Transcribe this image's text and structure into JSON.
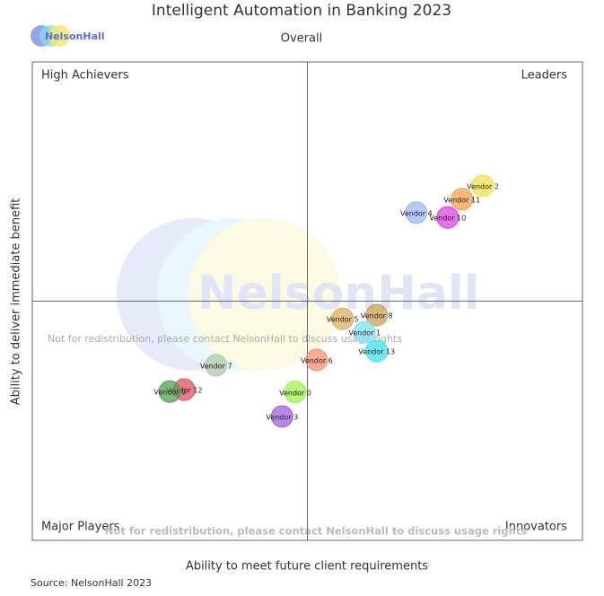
{
  "chart_data": {
    "type": "scatter",
    "title": "Intelligent Automation in Banking 2023",
    "subtitle": "Overall",
    "logo": "NelsonHall",
    "x_label": "Ability to meet future client requirements",
    "y_label": "Ability to deliver immediate benefit",
    "quadrants": [
      "High Achievers",
      "Leaders",
      "Major Players",
      "Innovators"
    ],
    "watermarks": [
      "Not for redistribution, please contact NelsonHall to discuss usage rights",
      "Not for redistribution, please contact NelsonHall to discuss usage rights"
    ],
    "source": "Source: NelsonHall 2023",
    "xlim": [
      0,
      10
    ],
    "ylim": [
      0,
      10
    ],
    "series": [
      {
        "name": "Vendor 2",
        "color": "#f5e04a",
        "x": [
          8.19
        ],
        "values": [
          7.41
        ]
      },
      {
        "name": "Vendor 11",
        "color": "#f5a04a",
        "x": [
          7.81
        ],
        "values": [
          7.13
        ]
      },
      {
        "name": "Vendor 4",
        "color": "#9cb8f0",
        "x": [
          6.98
        ],
        "values": [
          6.85
        ]
      },
      {
        "name": "Vendor 10",
        "color": "#e040e0",
        "x": [
          7.55
        ],
        "values": [
          6.75
        ]
      },
      {
        "name": "Vendor 8",
        "color": "#c8a050",
        "x": [
          6.26
        ],
        "values": [
          4.71
        ]
      },
      {
        "name": "Vendor 5",
        "color": "#d8b060",
        "x": [
          5.64
        ],
        "values": [
          4.63
        ]
      },
      {
        "name": "Vendor 1",
        "color": "#80e0f0",
        "x": [
          6.04
        ],
        "values": [
          4.35
        ]
      },
      {
        "name": "Vendor 13",
        "color": "#40e0f0",
        "x": [
          6.26
        ],
        "values": [
          3.96
        ]
      },
      {
        "name": "Vendor 6",
        "color": "#f09070",
        "x": [
          5.17
        ],
        "values": [
          3.77
        ]
      },
      {
        "name": "Vendor 7",
        "color": "#b0c8a8",
        "x": [
          3.34
        ],
        "values": [
          3.66
        ]
      },
      {
        "name": "Vendor 12",
        "color": "#e05060",
        "x": [
          2.76
        ],
        "values": [
          3.15
        ]
      },
      {
        "name": "Vendor 9",
        "color": "#50a050",
        "x": [
          2.5
        ],
        "values": [
          3.11
        ]
      },
      {
        "name": "Vendor 0",
        "color": "#a0f050",
        "x": [
          4.78
        ],
        "values": [
          3.1
        ]
      },
      {
        "name": "Vendor 3",
        "color": "#a060e0",
        "x": [
          4.54
        ],
        "values": [
          2.59
        ]
      }
    ]
  }
}
